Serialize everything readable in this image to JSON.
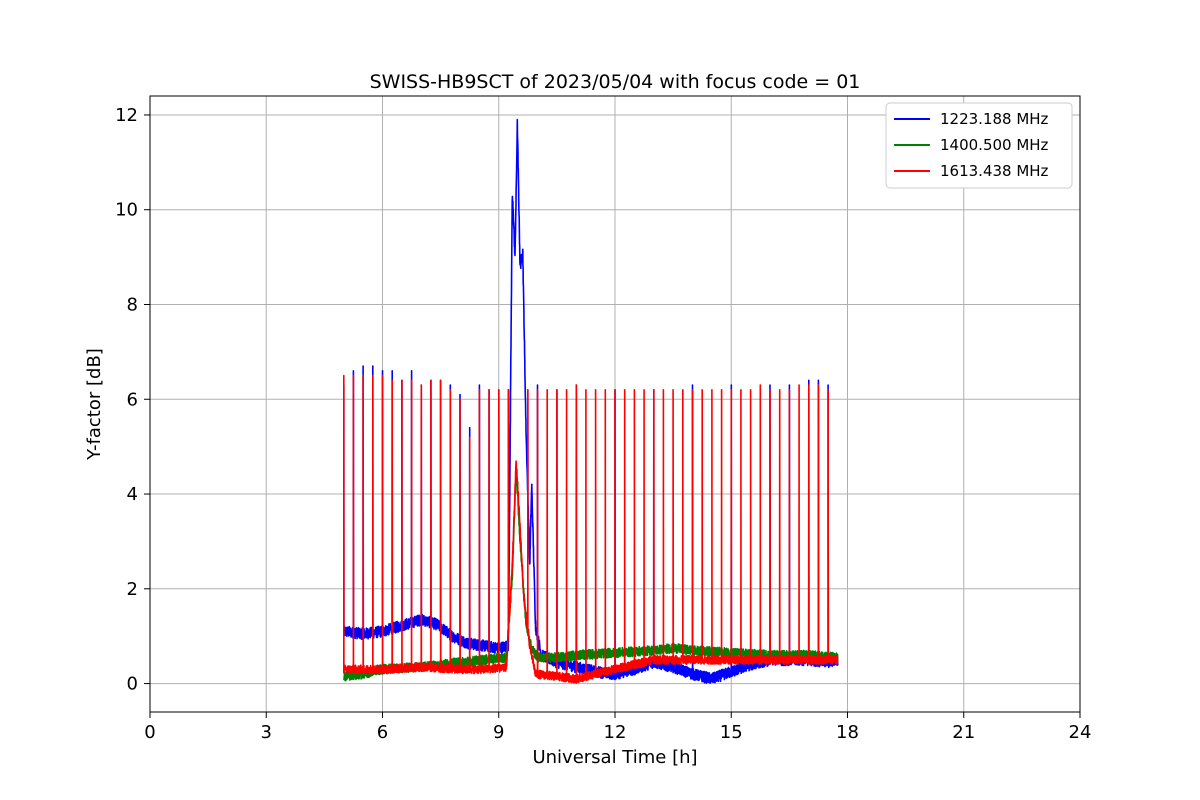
{
  "chart_data": {
    "type": "line",
    "title": "SWISS-HB9SCT of 2023/05/04 with focus code = 01",
    "xlabel": "Universal Time [h]",
    "ylabel": "Y-factor [dB]",
    "xlim": [
      0,
      24
    ],
    "ylim": [
      -0.6,
      12.4
    ],
    "xticks": [
      0,
      3,
      6,
      9,
      12,
      15,
      18,
      21,
      24
    ],
    "yticks": [
      0,
      2,
      4,
      6,
      8,
      10,
      12
    ],
    "grid": true,
    "legend_position": "top-right",
    "series": [
      {
        "name": "1223.188 MHz",
        "color": "#0000ff",
        "baseline": [
          [
            5.0,
            1.1
          ],
          [
            5.5,
            1.05
          ],
          [
            6.0,
            1.1
          ],
          [
            6.6,
            1.25
          ],
          [
            7.0,
            1.35
          ],
          [
            7.4,
            1.25
          ],
          [
            7.8,
            1.0
          ],
          [
            8.2,
            0.85
          ],
          [
            8.6,
            0.8
          ],
          [
            9.0,
            0.75
          ],
          [
            9.25,
            0.8
          ],
          [
            9.35,
            10.4
          ],
          [
            9.42,
            9.0
          ],
          [
            9.48,
            11.8
          ],
          [
            9.55,
            8.8
          ],
          [
            9.62,
            9.1
          ],
          [
            9.7,
            5.5
          ],
          [
            9.8,
            2.5
          ],
          [
            9.85,
            4.2
          ],
          [
            9.95,
            1.2
          ],
          [
            10.1,
            0.6
          ],
          [
            10.5,
            0.45
          ],
          [
            11.0,
            0.35
          ],
          [
            11.5,
            0.25
          ],
          [
            12.0,
            0.2
          ],
          [
            12.5,
            0.3
          ],
          [
            13.0,
            0.45
          ],
          [
            13.5,
            0.35
          ],
          [
            14.0,
            0.2
          ],
          [
            14.5,
            0.1
          ],
          [
            15.0,
            0.25
          ],
          [
            15.5,
            0.4
          ],
          [
            16.0,
            0.5
          ],
          [
            16.5,
            0.5
          ],
          [
            17.0,
            0.5
          ],
          [
            17.5,
            0.45
          ],
          [
            17.75,
            0.5
          ]
        ],
        "noise": 0.12,
        "spikes": [
          [
            5.0,
            6.3
          ],
          [
            5.25,
            6.6
          ],
          [
            5.5,
            6.7
          ],
          [
            5.75,
            6.7
          ],
          [
            6.0,
            6.6
          ],
          [
            6.25,
            6.6
          ],
          [
            6.5,
            6.4
          ],
          [
            6.75,
            6.6
          ],
          [
            7.0,
            6.3
          ],
          [
            7.25,
            6.4
          ],
          [
            7.5,
            6.4
          ],
          [
            7.75,
            6.3
          ],
          [
            8.0,
            6.1
          ],
          [
            8.25,
            5.4
          ],
          [
            8.5,
            6.3
          ],
          [
            8.75,
            6.2
          ],
          [
            9.0,
            6.2
          ],
          [
            9.25,
            6.2
          ],
          [
            9.75,
            6.2
          ],
          [
            10.0,
            6.3
          ],
          [
            10.5,
            6.2
          ],
          [
            11.0,
            6.3
          ],
          [
            12.0,
            6.2
          ],
          [
            13.0,
            6.2
          ],
          [
            14.0,
            6.3
          ],
          [
            15.0,
            6.3
          ],
          [
            16.0,
            6.3
          ],
          [
            16.5,
            6.3
          ],
          [
            17.0,
            6.4
          ],
          [
            17.25,
            6.4
          ],
          [
            17.5,
            6.3
          ]
        ]
      },
      {
        "name": "1400.500 MHz",
        "color": "#008000",
        "baseline": [
          [
            5.0,
            0.15
          ],
          [
            5.5,
            0.2
          ],
          [
            6.0,
            0.3
          ],
          [
            7.0,
            0.35
          ],
          [
            8.0,
            0.45
          ],
          [
            8.6,
            0.5
          ],
          [
            9.2,
            0.55
          ],
          [
            9.35,
            2.3
          ],
          [
            9.45,
            4.6
          ],
          [
            9.55,
            3.0
          ],
          [
            9.7,
            1.3
          ],
          [
            9.85,
            0.75
          ],
          [
            10.0,
            0.55
          ],
          [
            10.5,
            0.55
          ],
          [
            11.0,
            0.6
          ],
          [
            12.0,
            0.65
          ],
          [
            13.0,
            0.7
          ],
          [
            13.5,
            0.75
          ],
          [
            14.0,
            0.7
          ],
          [
            15.0,
            0.65
          ],
          [
            16.0,
            0.6
          ],
          [
            17.0,
            0.6
          ],
          [
            17.75,
            0.55
          ]
        ],
        "noise": 0.1,
        "spikes": []
      },
      {
        "name": "1613.438 MHz",
        "color": "#ff0000",
        "baseline": [
          [
            5.0,
            0.3
          ],
          [
            6.0,
            0.3
          ],
          [
            7.0,
            0.35
          ],
          [
            8.0,
            0.3
          ],
          [
            8.6,
            0.3
          ],
          [
            9.2,
            0.35
          ],
          [
            9.35,
            2.5
          ],
          [
            9.45,
            4.7
          ],
          [
            9.55,
            3.3
          ],
          [
            9.65,
            1.8
          ],
          [
            9.8,
            0.8
          ],
          [
            9.95,
            0.2
          ],
          [
            10.5,
            0.15
          ],
          [
            11.0,
            0.1
          ],
          [
            11.5,
            0.2
          ],
          [
            12.0,
            0.3
          ],
          [
            12.5,
            0.4
          ],
          [
            13.0,
            0.5
          ],
          [
            14.0,
            0.5
          ],
          [
            15.0,
            0.5
          ],
          [
            16.0,
            0.5
          ],
          [
            17.0,
            0.5
          ],
          [
            17.75,
            0.5
          ]
        ],
        "noise": 0.09,
        "spikes": [
          [
            5.0,
            6.5
          ],
          [
            5.25,
            6.5
          ],
          [
            5.5,
            6.5
          ],
          [
            5.75,
            6.5
          ],
          [
            6.0,
            6.5
          ],
          [
            6.25,
            6.4
          ],
          [
            6.5,
            6.4
          ],
          [
            6.75,
            6.4
          ],
          [
            7.0,
            6.3
          ],
          [
            7.25,
            6.4
          ],
          [
            7.5,
            6.4
          ],
          [
            7.75,
            6.2
          ],
          [
            8.0,
            6.0
          ],
          [
            8.25,
            5.2
          ],
          [
            8.5,
            6.2
          ],
          [
            8.75,
            6.2
          ],
          [
            9.0,
            6.2
          ],
          [
            9.25,
            6.2
          ],
          [
            9.75,
            6.2
          ],
          [
            10.0,
            6.2
          ],
          [
            10.25,
            6.2
          ],
          [
            10.5,
            6.2
          ],
          [
            10.75,
            6.2
          ],
          [
            11.0,
            6.3
          ],
          [
            11.25,
            6.2
          ],
          [
            11.5,
            6.2
          ],
          [
            11.75,
            6.2
          ],
          [
            12.0,
            6.2
          ],
          [
            12.25,
            6.2
          ],
          [
            12.5,
            6.2
          ],
          [
            12.75,
            6.2
          ],
          [
            13.0,
            6.2
          ],
          [
            13.25,
            6.2
          ],
          [
            13.5,
            6.2
          ],
          [
            13.75,
            6.2
          ],
          [
            14.0,
            6.2
          ],
          [
            14.25,
            6.2
          ],
          [
            14.5,
            6.2
          ],
          [
            14.75,
            6.2
          ],
          [
            15.0,
            6.2
          ],
          [
            15.25,
            6.2
          ],
          [
            15.5,
            6.2
          ],
          [
            15.75,
            6.3
          ],
          [
            16.0,
            6.2
          ],
          [
            16.25,
            6.2
          ],
          [
            16.5,
            6.2
          ],
          [
            16.75,
            6.3
          ],
          [
            17.0,
            6.3
          ],
          [
            17.25,
            6.3
          ],
          [
            17.5,
            6.2
          ]
        ]
      }
    ]
  }
}
